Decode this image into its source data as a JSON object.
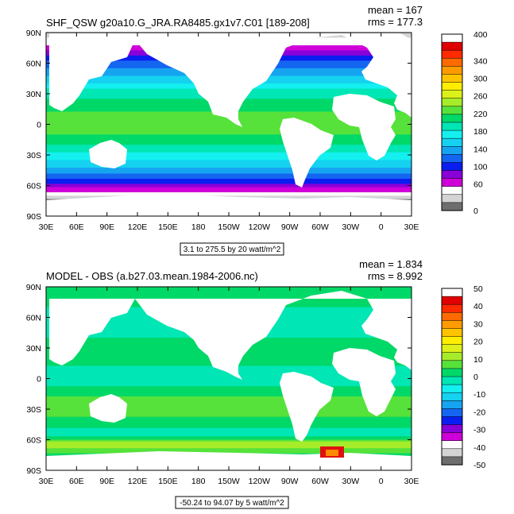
{
  "chart_data": [
    {
      "type": "heatmap",
      "title": "SHF_QSW g20a10.G_JRA.RA8485.gx1v7.C01 [189-208]",
      "stats": {
        "mean": "mean = 167",
        "rms": "rms = 177.3"
      },
      "x_ticks": [
        "30E",
        "60E",
        "90E",
        "120E",
        "150E",
        "180",
        "150W",
        "120W",
        "90W",
        "60W",
        "30W",
        "0",
        "30E"
      ],
      "y_ticks": [
        "90N",
        "60N",
        "30N",
        "0",
        "30S",
        "60S",
        "90S"
      ],
      "contour_info": "3.1 to 275.5 by 20 watt/m^2",
      "colorbar": {
        "labels": [
          "400",
          "340",
          "300",
          "260",
          "220",
          "180",
          "140",
          "100",
          "60",
          "0"
        ],
        "colors": [
          "#ffffff",
          "#e00000",
          "#ff2a00",
          "#ff6a00",
          "#ff9a00",
          "#ffc400",
          "#ffee00",
          "#dcf01a",
          "#a6ec2a",
          "#56e23a",
          "#00d868",
          "#00e6b4",
          "#14f0f0",
          "#14d2f0",
          "#16a4f0",
          "#1466f0",
          "#0a1ef0",
          "#8a00d8",
          "#d000d8",
          "#ffffff",
          "#d4d4d4",
          "#6e6e6e"
        ]
      },
      "lat_bands": [
        {
          "lat": 90,
          "value": 20
        },
        {
          "lat": 75,
          "value": 60
        },
        {
          "lat": 60,
          "value": 115
        },
        {
          "lat": 45,
          "value": 150
        },
        {
          "lat": 30,
          "value": 195
        },
        {
          "lat": 15,
          "value": 215
        },
        {
          "lat": 0,
          "value": 232
        },
        {
          "lat": -15,
          "value": 212
        },
        {
          "lat": -30,
          "value": 178
        },
        {
          "lat": -45,
          "value": 140
        },
        {
          "lat": -55,
          "value": 105
        },
        {
          "lat": -65,
          "value": 60
        },
        {
          "lat": -75,
          "value": 10
        },
        {
          "lat": -90,
          "value": 0
        }
      ]
    },
    {
      "type": "heatmap",
      "title": "MODEL - OBS (a.b27.03.mean.1984-2006.nc)",
      "stats": {
        "mean": "mean = 1.834",
        "rms": "rms = 8.992"
      },
      "x_ticks": [
        "30E",
        "60E",
        "90E",
        "120E",
        "150E",
        "180",
        "150W",
        "120W",
        "90W",
        "60W",
        "30W",
        "0",
        "30E"
      ],
      "y_ticks": [
        "90N",
        "60N",
        "30N",
        "0",
        "30S",
        "60S",
        "90S"
      ],
      "contour_info": "-50.24 to 94.07 by 5 watt/m^2",
      "colorbar": {
        "labels": [
          "50",
          "40",
          "30",
          "20",
          "10",
          "0",
          "-10",
          "-20",
          "-30",
          "-40",
          "-50"
        ],
        "colors": [
          "#ffffff",
          "#e00000",
          "#ff2a00",
          "#ff6a00",
          "#ff9a00",
          "#ffc400",
          "#ffee00",
          "#dcf01a",
          "#a6ec2a",
          "#56e23a",
          "#00d868",
          "#00e6b4",
          "#14f0f0",
          "#14d2f0",
          "#16a4f0",
          "#1466f0",
          "#0a1ef0",
          "#8a00d8",
          "#d000d8",
          "#ffffff",
          "#d4d4d4",
          "#6e6e6e"
        ]
      },
      "lat_bands": [
        {
          "lat": 90,
          "value": 4
        },
        {
          "lat": 75,
          "value": 2
        },
        {
          "lat": 60,
          "value": -3
        },
        {
          "lat": 45,
          "value": -2
        },
        {
          "lat": 30,
          "value": 3
        },
        {
          "lat": 15,
          "value": 1
        },
        {
          "lat": 0,
          "value": -4
        },
        {
          "lat": -15,
          "value": 4
        },
        {
          "lat": -30,
          "value": 7
        },
        {
          "lat": -45,
          "value": 2
        },
        {
          "lat": -55,
          "value": -3
        },
        {
          "lat": -65,
          "value": 14
        },
        {
          "lat": -75,
          "value": 2
        },
        {
          "lat": -90,
          "value": 0
        }
      ]
    }
  ]
}
